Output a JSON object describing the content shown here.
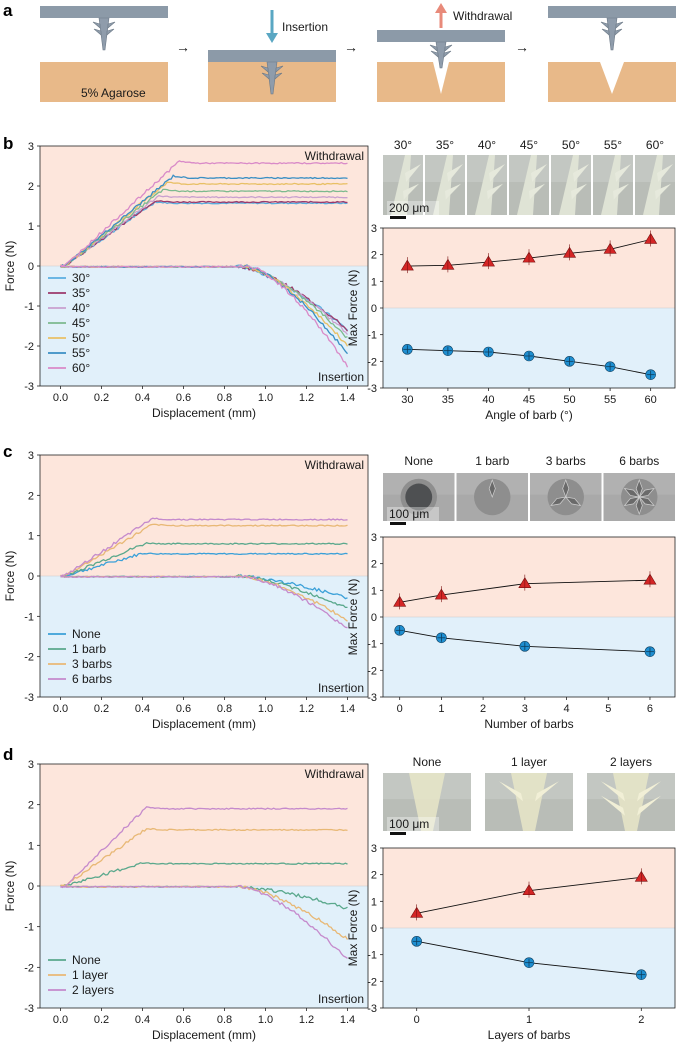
{
  "colors": {
    "withdrawal_bg": "#fde6dc",
    "insertion_bg": "#e1f0fa",
    "tissue": "#e8b989",
    "plate": "#8c9aa8",
    "arrow_insert": "#5aa7c3",
    "arrow_withdraw": "#e88a7a",
    "withdraw_marker": "#d42626",
    "insert_marker": "#1f8fd1"
  },
  "panel_a": {
    "letter": "a",
    "agarose_label": "5% Agarose",
    "insertion_label": "Insertion",
    "withdrawal_label": "Withdrawal",
    "arrow_glyph": "→"
  },
  "panel_b": {
    "letter": "b",
    "photo_labels": [
      "30°",
      "35°",
      "40°",
      "45°",
      "50°",
      "55°",
      "60°"
    ],
    "scale_bar": "200 μm"
  },
  "panel_c": {
    "letter": "c",
    "photo_labels": [
      "None",
      "1 barb",
      "3 barbs",
      "6 barbs"
    ],
    "scale_bar": "100 μm"
  },
  "panel_d": {
    "letter": "d",
    "photo_labels": [
      "None",
      "1 layer",
      "2 layers"
    ],
    "scale_bar": "100 μm"
  },
  "chart_data": [
    {
      "id": "b-left",
      "type": "line",
      "xlabel": "Displacement (mm)",
      "ylabel": "Force (N)",
      "xlim": [
        -0.1,
        1.5
      ],
      "ylim": [
        -3,
        3
      ],
      "xticks": [
        "0.0",
        "0.2",
        "0.4",
        "0.6",
        "0.8",
        "1.0",
        "1.2",
        "1.4"
      ],
      "yticks": [
        "-3",
        "-2",
        "-1",
        "0",
        "1",
        "2",
        "3"
      ],
      "annotations": [
        "Withdrawal",
        "Insertion"
      ],
      "legend_position": "bottom-left",
      "series": [
        {
          "name": "30°",
          "color": "#5aaee0",
          "peak_x": 0.46,
          "plateau": 1.57,
          "insertion_end": -1.6
        },
        {
          "name": "35°",
          "color": "#9c3a6b",
          "peak_x": 0.46,
          "plateau": 1.6,
          "insertion_end": -1.6
        },
        {
          "name": "40°",
          "color": "#c9a0cf",
          "peak_x": 0.48,
          "plateau": 1.72,
          "insertion_end": -1.7
        },
        {
          "name": "45°",
          "color": "#7cba8e",
          "peak_x": 0.5,
          "plateau": 1.87,
          "insertion_end": -1.8
        },
        {
          "name": "50°",
          "color": "#e8c065",
          "peak_x": 0.52,
          "plateau": 2.05,
          "insertion_end": -2.0
        },
        {
          "name": "55°",
          "color": "#3a8fc4",
          "peak_x": 0.55,
          "plateau": 2.2,
          "insertion_end": -2.2
        },
        {
          "name": "60°",
          "color": "#d98ac8",
          "peak_x": 0.58,
          "plateau": 2.57,
          "insertion_end": -2.5
        }
      ]
    },
    {
      "id": "b-right",
      "type": "scatter",
      "xlabel": "Angle of barb (°)",
      "ylabel": "Max Force (N)",
      "xlim": [
        27,
        63
      ],
      "ylim": [
        -3,
        3
      ],
      "xticks": [
        "30",
        "35",
        "40",
        "45",
        "50",
        "55",
        "60"
      ],
      "yticks": [
        "-3",
        "-2",
        "-1",
        "0",
        "1",
        "2",
        "3"
      ],
      "x": [
        30,
        35,
        40,
        45,
        50,
        55,
        60
      ],
      "series": [
        {
          "values": [
            1.57,
            1.6,
            1.72,
            1.87,
            2.05,
            2.2,
            2.57
          ],
          "marker": "triangle"
        },
        {
          "values": [
            -1.55,
            -1.6,
            -1.65,
            -1.8,
            -2.0,
            -2.2,
            -2.5
          ],
          "marker": "circle"
        }
      ]
    },
    {
      "id": "c-left",
      "type": "line",
      "xlabel": "Displacement (mm)",
      "ylabel": "Force (N)",
      "xlim": [
        -0.1,
        1.5
      ],
      "ylim": [
        -3,
        3
      ],
      "xticks": [
        "0.0",
        "0.2",
        "0.4",
        "0.6",
        "0.8",
        "1.0",
        "1.2",
        "1.4"
      ],
      "yticks": [
        "-3",
        "-2",
        "-1",
        "0",
        "1",
        "2",
        "3"
      ],
      "annotations": [
        "Withdrawal",
        "Insertion"
      ],
      "legend_position": "bottom-left",
      "series": [
        {
          "name": "None",
          "color": "#3aa0d8",
          "peak_x": 0.4,
          "plateau": 0.55,
          "insertion_end": -0.55
        },
        {
          "name": "1 barb",
          "color": "#5aa88c",
          "peak_x": 0.42,
          "plateau": 0.8,
          "insertion_end": -0.8
        },
        {
          "name": "3 barbs",
          "color": "#e8b875",
          "peak_x": 0.45,
          "plateau": 1.25,
          "insertion_end": -1.1
        },
        {
          "name": "6 barbs",
          "color": "#c58acc",
          "peak_x": 0.45,
          "plateau": 1.4,
          "insertion_end": -1.3
        }
      ]
    },
    {
      "id": "c-right",
      "type": "scatter",
      "xlabel": "Number of barbs",
      "ylabel": "Max Force (N)",
      "xlim": [
        -0.4,
        6.6
      ],
      "ylim": [
        -3,
        3
      ],
      "xticks": [
        "0",
        "1",
        "2",
        "3",
        "4",
        "5",
        "6"
      ],
      "yticks": [
        "-3",
        "-2",
        "-1",
        "0",
        "1",
        "2",
        "3"
      ],
      "x": [
        0,
        1,
        3,
        6
      ],
      "series": [
        {
          "values": [
            0.55,
            0.82,
            1.25,
            1.38
          ],
          "marker": "triangle"
        },
        {
          "values": [
            -0.5,
            -0.78,
            -1.1,
            -1.3
          ],
          "marker": "circle"
        }
      ]
    },
    {
      "id": "d-left",
      "type": "line",
      "xlabel": "Displacement (mm)",
      "ylabel": "Force (N)",
      "xlim": [
        -0.1,
        1.5
      ],
      "ylim": [
        -3,
        3
      ],
      "xticks": [
        "0.0",
        "0.2",
        "0.4",
        "0.6",
        "0.8",
        "1.0",
        "1.2",
        "1.4"
      ],
      "yticks": [
        "-3",
        "-2",
        "-1",
        "0",
        "1",
        "2",
        "3"
      ],
      "annotations": [
        "Withdrawal",
        "Insertion"
      ],
      "legend_position": "bottom-left",
      "series": [
        {
          "name": "None",
          "color": "#5aa88c",
          "peak_x": 0.4,
          "plateau": 0.55,
          "insertion_end": -0.55
        },
        {
          "name": "1 layer",
          "color": "#e8b875",
          "peak_x": 0.42,
          "plateau": 1.38,
          "insertion_end": -1.3
        },
        {
          "name": "2 layers",
          "color": "#c58acc",
          "peak_x": 0.42,
          "plateau": 1.9,
          "insertion_end": -1.8
        }
      ]
    },
    {
      "id": "d-right",
      "type": "scatter",
      "xlabel": "Layers of barbs",
      "ylabel": "Max Force (N)",
      "xlim": [
        -0.3,
        2.3
      ],
      "ylim": [
        -3,
        3
      ],
      "xticks": [
        "0",
        "1",
        "2"
      ],
      "yticks": [
        "-3",
        "-2",
        "-1",
        "0",
        "1",
        "2",
        "3"
      ],
      "x": [
        0,
        1,
        2
      ],
      "series": [
        {
          "values": [
            0.55,
            1.4,
            1.9
          ],
          "marker": "triangle"
        },
        {
          "values": [
            -0.5,
            -1.3,
            -1.75
          ],
          "marker": "circle"
        }
      ]
    }
  ]
}
